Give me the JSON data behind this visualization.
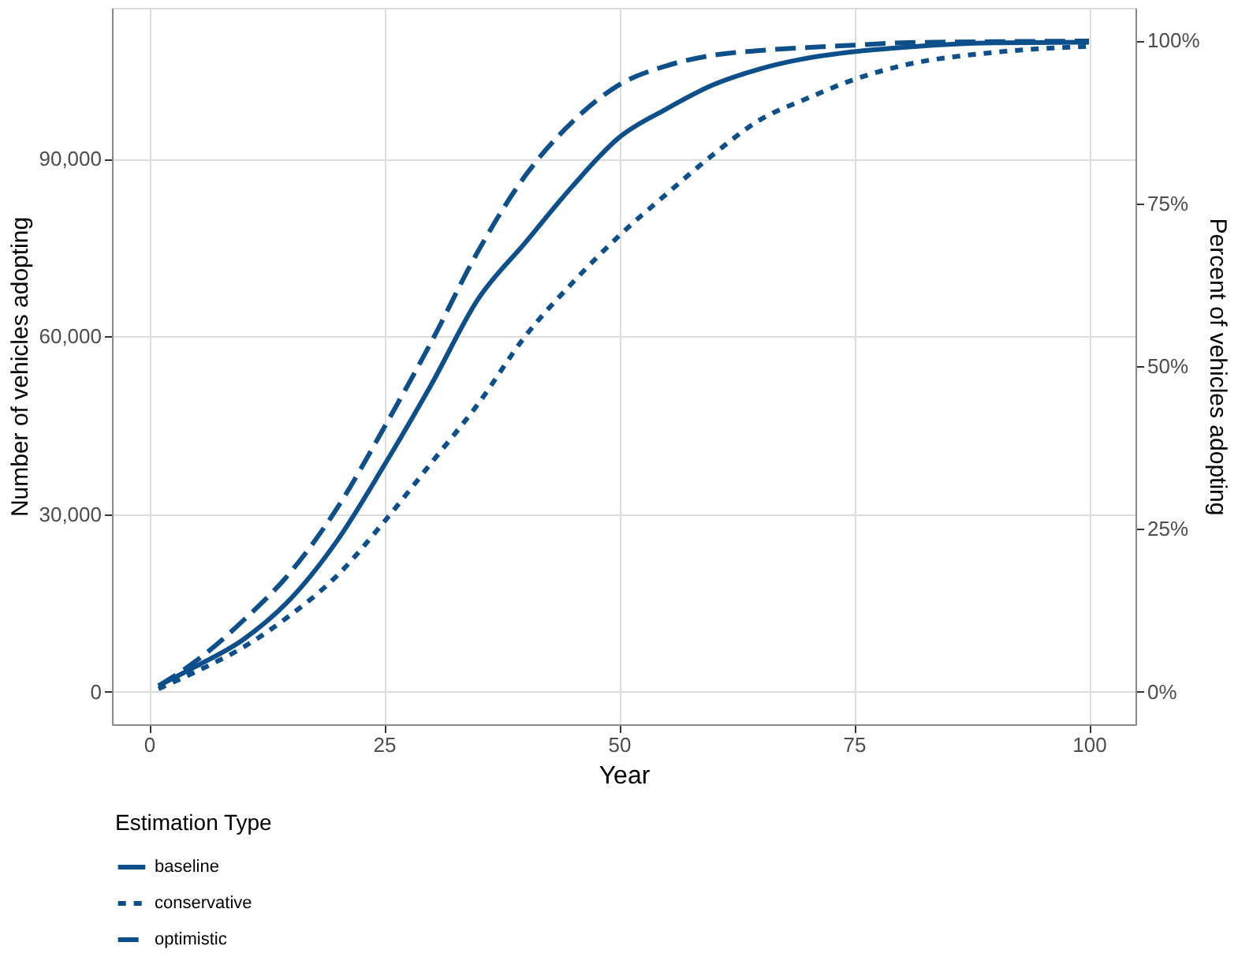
{
  "chart_data": {
    "type": "line",
    "xlabel": "Year",
    "ylabel": "Number of vehicles adopting",
    "y2label": "Percent of vehicles adopting",
    "legend_title": "Estimation Type",
    "x": [
      1,
      5,
      10,
      15,
      20,
      25,
      30,
      35,
      40,
      45,
      50,
      55,
      60,
      65,
      70,
      75,
      80,
      90,
      100
    ],
    "series": [
      {
        "name": "baseline",
        "color": "#0d4f8b",
        "line_style": "solid",
        "values": [
          1000,
          4300,
          8800,
          15600,
          25500,
          38200,
          51800,
          66300,
          75800,
          85300,
          93600,
          98400,
          102500,
          105200,
          107000,
          108100,
          108800,
          109600,
          109700
        ]
      },
      {
        "name": "conservative",
        "color": "#0d4f8b",
        "line_style": "dotted",
        "values": [
          500,
          3400,
          7500,
          12900,
          19600,
          28700,
          38600,
          48600,
          60000,
          69000,
          77000,
          84000,
          90700,
          96600,
          100200,
          103400,
          105700,
          108000,
          109000
        ]
      },
      {
        "name": "optimistic",
        "color": "#0d4f8b",
        "line_style": "dashed",
        "values": [
          1000,
          5200,
          12000,
          20100,
          31000,
          44600,
          59000,
          74400,
          87100,
          96200,
          102500,
          105700,
          107500,
          108300,
          108800,
          109200,
          109600,
          109800,
          109900
        ]
      }
    ],
    "xlim": [
      -3.95,
      104.95
    ],
    "xticks": [
      0,
      25,
      50,
      75,
      100
    ],
    "ylim": [
      -5500,
      115500
    ],
    "yticks": [
      {
        "value": 0,
        "label": "0"
      },
      {
        "value": 30000,
        "label": "30,000"
      },
      {
        "value": 60000,
        "label": "60,000"
      },
      {
        "value": 90000,
        "label": "90,000"
      }
    ],
    "y2lim": [
      -5,
      105
    ],
    "y2ticks": [
      {
        "value": 0,
        "label": "0%"
      },
      {
        "value": 25,
        "label": "25%"
      },
      {
        "value": 50,
        "label": "50%"
      },
      {
        "value": 75,
        "label": "75%"
      },
      {
        "value": 100,
        "label": "100%"
      }
    ],
    "grid": true,
    "legend": "bottom"
  }
}
